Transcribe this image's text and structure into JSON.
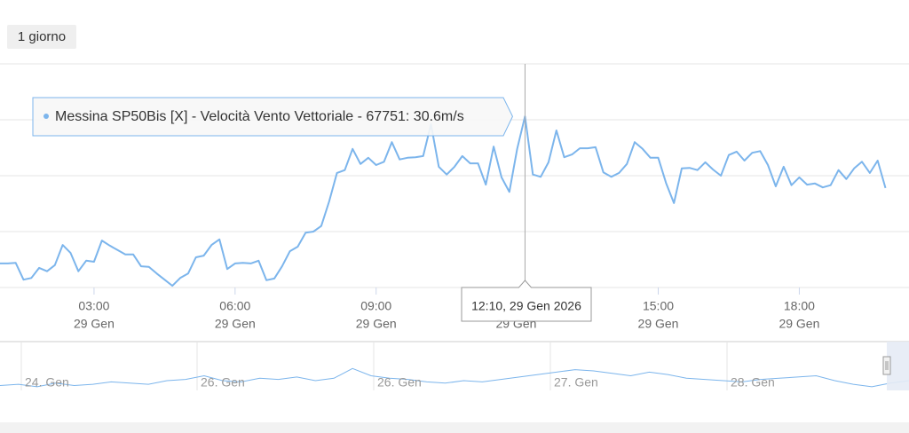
{
  "range_button": "1 giorno",
  "chart_data": {
    "type": "line",
    "x": [
      60,
      70,
      80,
      90,
      100,
      110,
      120,
      130,
      140,
      150,
      160,
      170,
      180,
      190,
      200,
      210,
      220,
      230,
      240,
      250,
      260,
      270,
      280,
      290,
      300,
      310,
      320,
      330,
      340,
      350,
      360,
      370,
      380,
      390,
      400,
      410,
      420,
      430,
      440,
      450,
      460,
      470,
      480,
      490,
      500,
      510,
      520,
      530,
      540,
      550,
      560,
      570,
      580,
      590,
      600,
      610,
      620,
      630,
      640,
      650,
      660,
      670,
      680,
      690,
      700,
      710,
      720,
      730,
      740,
      750,
      760,
      770,
      780,
      790,
      800,
      810,
      820,
      830,
      840,
      850,
      860,
      870,
      880,
      890,
      900,
      910,
      920,
      930,
      940,
      950,
      960,
      970,
      980,
      990,
      1000,
      1010,
      1020,
      1030,
      1040,
      1050,
      1060,
      1070,
      1080,
      1090,
      1100,
      1110,
      1120,
      1130,
      1140,
      1150,
      1160,
      1170,
      1180,
      1190
    ],
    "series": [
      {
        "name": "Messina SP50Bis [X] - Velocità Vento Vettoriale - 67751",
        "color": "#7cb5ec",
        "values": [
          4.3,
          4.3,
          4.4,
          1.4,
          1.7,
          3.5,
          2.9,
          4.0,
          7.6,
          6.2,
          2.9,
          4.8,
          4.6,
          8.4,
          7.5,
          6.7,
          5.9,
          5.9,
          3.8,
          3.7,
          2.5,
          1.4,
          0.3,
          1.7,
          2.5,
          5.4,
          5.7,
          7.6,
          8.6,
          3.3,
          4.3,
          4.4,
          4.3,
          4.8,
          1.3,
          1.6,
          3.8,
          6.5,
          7.3,
          9.8,
          10.0,
          11.0,
          15.4,
          20.5,
          21.0,
          24.8,
          22.1,
          23.2,
          21.9,
          22.5,
          26.0,
          22.9,
          23.2,
          23.3,
          23.5,
          29.2,
          21.6,
          20.2,
          21.6,
          23.5,
          22.2,
          22.2,
          18.4,
          25.2,
          19.7,
          17.1,
          24.8,
          30.6,
          20.2,
          19.8,
          22.4,
          28.1,
          23.3,
          23.8,
          24.9,
          24.9,
          25.1,
          20.6,
          19.8,
          20.5,
          22.1,
          26.0,
          24.8,
          23.2,
          23.2,
          18.7,
          15.1,
          21.3,
          21.4,
          21.0,
          22.4,
          21.1,
          20.0,
          23.7,
          24.3,
          22.7,
          24.1,
          24.4,
          21.9,
          18.1,
          21.6,
          18.3,
          19.7,
          18.4,
          18.6,
          17.9,
          18.3,
          21.0,
          19.4,
          21.3,
          22.5,
          20.5,
          22.7,
          17.8
        ]
      }
    ],
    "xlim": [
      60,
      1220
    ],
    "xticks": [
      {
        "value": 180,
        "label": "03:00",
        "date": "29 Gen"
      },
      {
        "value": 360,
        "label": "06:00",
        "date": "29 Gen"
      },
      {
        "value": 540,
        "label": "09:00",
        "date": "29 Gen"
      },
      {
        "value": 900,
        "label": "15:00",
        "date": "29 Gen"
      },
      {
        "value": 1080,
        "label": "18:00",
        "date": "29 Gen"
      }
    ],
    "ylim": [
      0,
      40
    ],
    "ygridlines": [
      0,
      10,
      20,
      30,
      40
    ],
    "tooltip": {
      "x": 730,
      "value": 30.6,
      "text": "Messina SP50Bis [X] - Velocità Vento Vettoriale - 67751: 30.6m/s",
      "x_label": "12:10, 29 Gen 2026",
      "x_date": "29 Gen"
    }
  },
  "navigator": {
    "values": [
      4,
      5,
      3,
      6,
      4,
      5,
      7,
      6,
      5,
      8,
      9,
      12,
      8,
      7,
      10,
      9,
      11,
      8,
      10,
      18,
      12,
      10,
      9,
      7,
      6,
      8,
      7,
      9,
      11,
      13,
      15,
      17,
      16,
      14,
      12,
      15,
      13,
      10,
      9,
      8,
      7,
      9,
      10,
      11,
      12,
      8,
      5,
      3,
      6,
      8
    ],
    "ylim": [
      0,
      40
    ],
    "color": "#7cb5ec",
    "labels": [
      "24. Gen",
      "26. Gen",
      "26. Gen",
      "27. Gen",
      "28. Gen"
    ]
  }
}
